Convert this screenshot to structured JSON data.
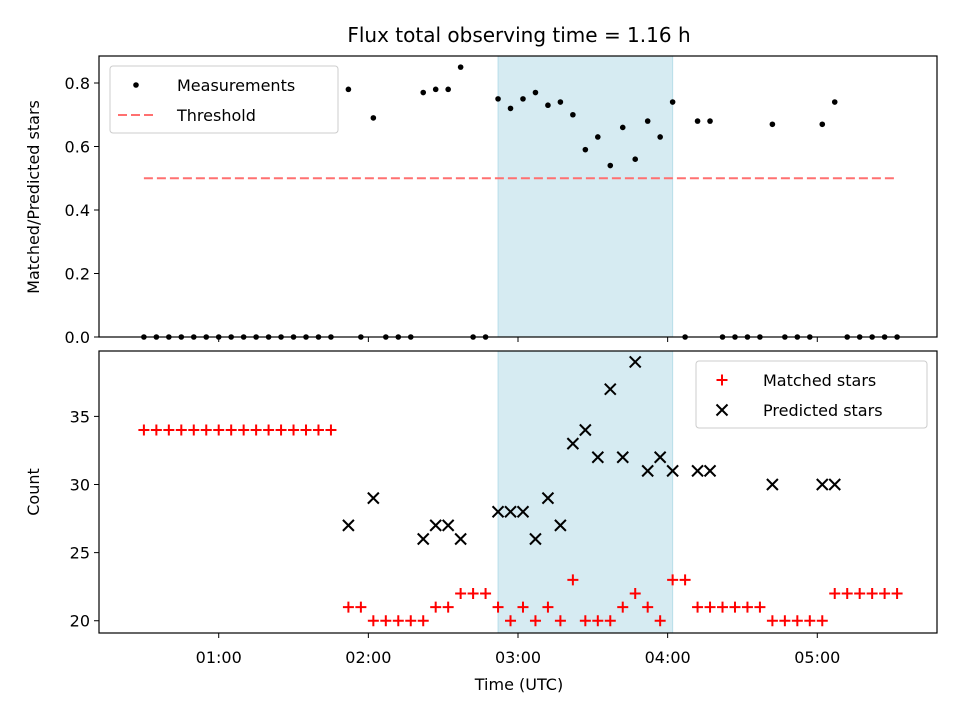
{
  "chart_data": [
    {
      "type": "scatter",
      "title": "Flux total observing time = 1.16 h",
      "xlabel": "",
      "ylabel": "Matched/Predicted stars",
      "ylim": [
        0,
        0.885
      ],
      "yticks": [
        0.0,
        0.2,
        0.4,
        0.6,
        0.8
      ],
      "ytick_labels": [
        "0.0",
        "0.2",
        "0.4",
        "0.6",
        "0.8"
      ],
      "shaded_span": [
        "02:52",
        "04:02"
      ],
      "shaded_color": "#add8e6",
      "legend_position": "upper-left",
      "series": [
        {
          "name": "Measurements",
          "marker": "dot",
          "color": "#000000",
          "points": [
            [
              "00:30",
              0.0
            ],
            [
              "00:35",
              0.0
            ],
            [
              "00:40",
              0.0
            ],
            [
              "00:45",
              0.0
            ],
            [
              "00:50",
              0.0
            ],
            [
              "00:55",
              0.0
            ],
            [
              "01:00",
              0.0
            ],
            [
              "01:05",
              0.0
            ],
            [
              "01:10",
              0.0
            ],
            [
              "01:15",
              0.0
            ],
            [
              "01:20",
              0.0
            ],
            [
              "01:25",
              0.0
            ],
            [
              "01:30",
              0.0
            ],
            [
              "01:35",
              0.0
            ],
            [
              "01:40",
              0.0
            ],
            [
              "01:45",
              0.0
            ],
            [
              "01:52",
              0.78
            ],
            [
              "01:57",
              0.0
            ],
            [
              "02:02",
              0.69
            ],
            [
              "02:07",
              0.0
            ],
            [
              "02:12",
              0.0
            ],
            [
              "02:17",
              0.0
            ],
            [
              "02:22",
              0.77
            ],
            [
              "02:27",
              0.78
            ],
            [
              "02:32",
              0.78
            ],
            [
              "02:37",
              0.85
            ],
            [
              "02:42",
              0.0
            ],
            [
              "02:47",
              0.0
            ],
            [
              "02:52",
              0.75
            ],
            [
              "02:57",
              0.72
            ],
            [
              "03:02",
              0.75
            ],
            [
              "03:07",
              0.77
            ],
            [
              "03:12",
              0.73
            ],
            [
              "03:17",
              0.74
            ],
            [
              "03:22",
              0.7
            ],
            [
              "03:27",
              0.59
            ],
            [
              "03:32",
              0.63
            ],
            [
              "03:37",
              0.54
            ],
            [
              "03:42",
              0.66
            ],
            [
              "03:47",
              0.56
            ],
            [
              "03:52",
              0.68
            ],
            [
              "03:57",
              0.63
            ],
            [
              "04:02",
              0.74
            ],
            [
              "04:07",
              0.0
            ],
            [
              "04:12",
              0.68
            ],
            [
              "04:17",
              0.68
            ],
            [
              "04:22",
              0.0
            ],
            [
              "04:27",
              0.0
            ],
            [
              "04:32",
              0.0
            ],
            [
              "04:37",
              0.0
            ],
            [
              "04:42",
              0.67
            ],
            [
              "04:47",
              0.0
            ],
            [
              "04:52",
              0.0
            ],
            [
              "04:57",
              0.0
            ],
            [
              "05:02",
              0.67
            ],
            [
              "05:07",
              0.74
            ],
            [
              "05:12",
              0.0
            ],
            [
              "05:17",
              0.0
            ],
            [
              "05:22",
              0.0
            ],
            [
              "05:27",
              0.0
            ],
            [
              "05:32",
              0.0
            ]
          ]
        },
        {
          "name": "Threshold",
          "marker": "dashed-line",
          "color": "#ff7070",
          "points": [
            [
              "00:30",
              0.5
            ],
            [
              "05:32",
              0.5
            ]
          ]
        }
      ]
    },
    {
      "type": "scatter",
      "title": "",
      "xlabel": "Time (UTC)",
      "ylabel": "Count",
      "ylim": [
        19.1,
        39.8
      ],
      "yticks": [
        20,
        25,
        30,
        35
      ],
      "ytick_labels": [
        "20",
        "25",
        "30",
        "35"
      ],
      "xticks": [
        "01:00",
        "02:00",
        "03:00",
        "04:00",
        "05:00"
      ],
      "xlim": [
        "00:12",
        "05:48"
      ],
      "shaded_span": [
        "02:52",
        "04:02"
      ],
      "shaded_color": "#add8e6",
      "legend_position": "upper-right",
      "series": [
        {
          "name": "Matched stars",
          "marker": "plus",
          "color": "#ff0000",
          "points": [
            [
              "00:30",
              34
            ],
            [
              "00:35",
              34
            ],
            [
              "00:40",
              34
            ],
            [
              "00:45",
              34
            ],
            [
              "00:50",
              34
            ],
            [
              "00:55",
              34
            ],
            [
              "01:00",
              34
            ],
            [
              "01:05",
              34
            ],
            [
              "01:10",
              34
            ],
            [
              "01:15",
              34
            ],
            [
              "01:20",
              34
            ],
            [
              "01:25",
              34
            ],
            [
              "01:30",
              34
            ],
            [
              "01:35",
              34
            ],
            [
              "01:40",
              34
            ],
            [
              "01:45",
              34
            ],
            [
              "01:52",
              21
            ],
            [
              "01:57",
              21
            ],
            [
              "02:02",
              20
            ],
            [
              "02:07",
              20
            ],
            [
              "02:12",
              20
            ],
            [
              "02:17",
              20
            ],
            [
              "02:22",
              20
            ],
            [
              "02:27",
              21
            ],
            [
              "02:32",
              21
            ],
            [
              "02:37",
              22
            ],
            [
              "02:42",
              22
            ],
            [
              "02:47",
              22
            ],
            [
              "02:52",
              21
            ],
            [
              "02:57",
              20
            ],
            [
              "03:02",
              21
            ],
            [
              "03:07",
              20
            ],
            [
              "03:12",
              21
            ],
            [
              "03:17",
              20
            ],
            [
              "03:22",
              23
            ],
            [
              "03:27",
              20
            ],
            [
              "03:32",
              20
            ],
            [
              "03:37",
              20
            ],
            [
              "03:42",
              21
            ],
            [
              "03:47",
              22
            ],
            [
              "03:52",
              21
            ],
            [
              "03:57",
              20
            ],
            [
              "04:02",
              23
            ],
            [
              "04:07",
              23
            ],
            [
              "04:12",
              21
            ],
            [
              "04:17",
              21
            ],
            [
              "04:22",
              21
            ],
            [
              "04:27",
              21
            ],
            [
              "04:32",
              21
            ],
            [
              "04:37",
              21
            ],
            [
              "04:42",
              20
            ],
            [
              "04:47",
              20
            ],
            [
              "04:52",
              20
            ],
            [
              "04:57",
              20
            ],
            [
              "05:02",
              20
            ],
            [
              "05:07",
              22
            ],
            [
              "05:12",
              22
            ],
            [
              "05:17",
              22
            ],
            [
              "05:22",
              22
            ],
            [
              "05:27",
              22
            ],
            [
              "05:32",
              22
            ]
          ]
        },
        {
          "name": "Predicted stars",
          "marker": "x",
          "color": "#000000",
          "points": [
            [
              "01:52",
              27
            ],
            [
              "02:02",
              29
            ],
            [
              "02:22",
              26
            ],
            [
              "02:27",
              27
            ],
            [
              "02:32",
              27
            ],
            [
              "02:37",
              26
            ],
            [
              "02:52",
              28
            ],
            [
              "02:57",
              28
            ],
            [
              "03:02",
              28
            ],
            [
              "03:07",
              26
            ],
            [
              "03:12",
              29
            ],
            [
              "03:17",
              27
            ],
            [
              "03:22",
              33
            ],
            [
              "03:27",
              34
            ],
            [
              "03:32",
              32
            ],
            [
              "03:37",
              37
            ],
            [
              "03:42",
              32
            ],
            [
              "03:47",
              39
            ],
            [
              "03:52",
              31
            ],
            [
              "03:57",
              32
            ],
            [
              "04:02",
              31
            ],
            [
              "04:12",
              31
            ],
            [
              "04:17",
              31
            ],
            [
              "04:42",
              30
            ],
            [
              "05:02",
              30
            ],
            [
              "05:07",
              30
            ]
          ]
        }
      ]
    }
  ]
}
